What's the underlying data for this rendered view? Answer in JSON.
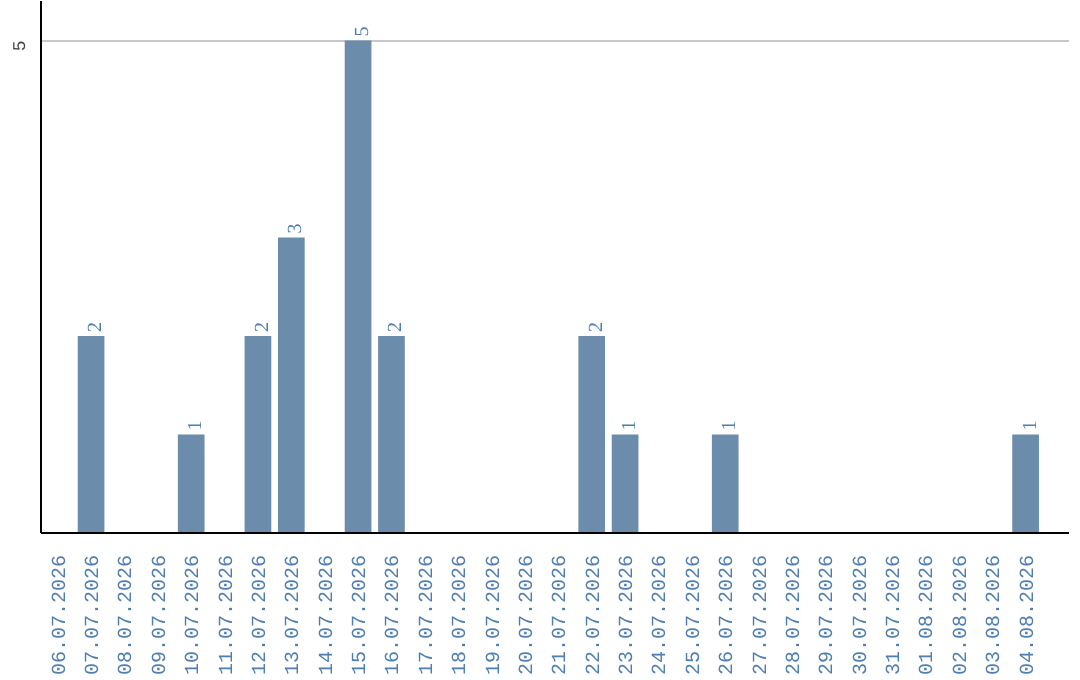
{
  "chart_data": {
    "type": "bar",
    "categories": [
      "06.07.2026",
      "07.07.2026",
      "08.07.2026",
      "09.07.2026",
      "10.07.2026",
      "11.07.2026",
      "12.07.2026",
      "13.07.2026",
      "14.07.2026",
      "15.07.2026",
      "16.07.2026",
      "17.07.2026",
      "18.07.2026",
      "19.07.2026",
      "20.07.2026",
      "21.07.2026",
      "22.07.2026",
      "23.07.2026",
      "24.07.2026",
      "25.07.2026",
      "26.07.2026",
      "27.07.2026",
      "28.07.2026",
      "29.07.2026",
      "30.07.2026",
      "31.07.2026",
      "01.08.2026",
      "02.08.2026",
      "03.08.2026",
      "04.08.2026"
    ],
    "values": [
      0,
      2,
      0,
      0,
      1,
      0,
      2,
      3,
      0,
      5,
      2,
      0,
      0,
      0,
      0,
      0,
      2,
      1,
      0,
      0,
      1,
      0,
      0,
      0,
      0,
      0,
      0,
      0,
      0,
      1
    ],
    "value_labels": [
      null,
      "2",
      null,
      null,
      "1",
      null,
      "2",
      "3",
      null,
      "5",
      "2",
      null,
      null,
      null,
      null,
      null,
      "2",
      "1",
      null,
      null,
      "1",
      null,
      null,
      null,
      null,
      null,
      null,
      null,
      null,
      "1"
    ],
    "color": "#6b8cab",
    "ylim": [
      0,
      5.4
    ],
    "yticks": [
      5
    ],
    "grid": "y"
  }
}
